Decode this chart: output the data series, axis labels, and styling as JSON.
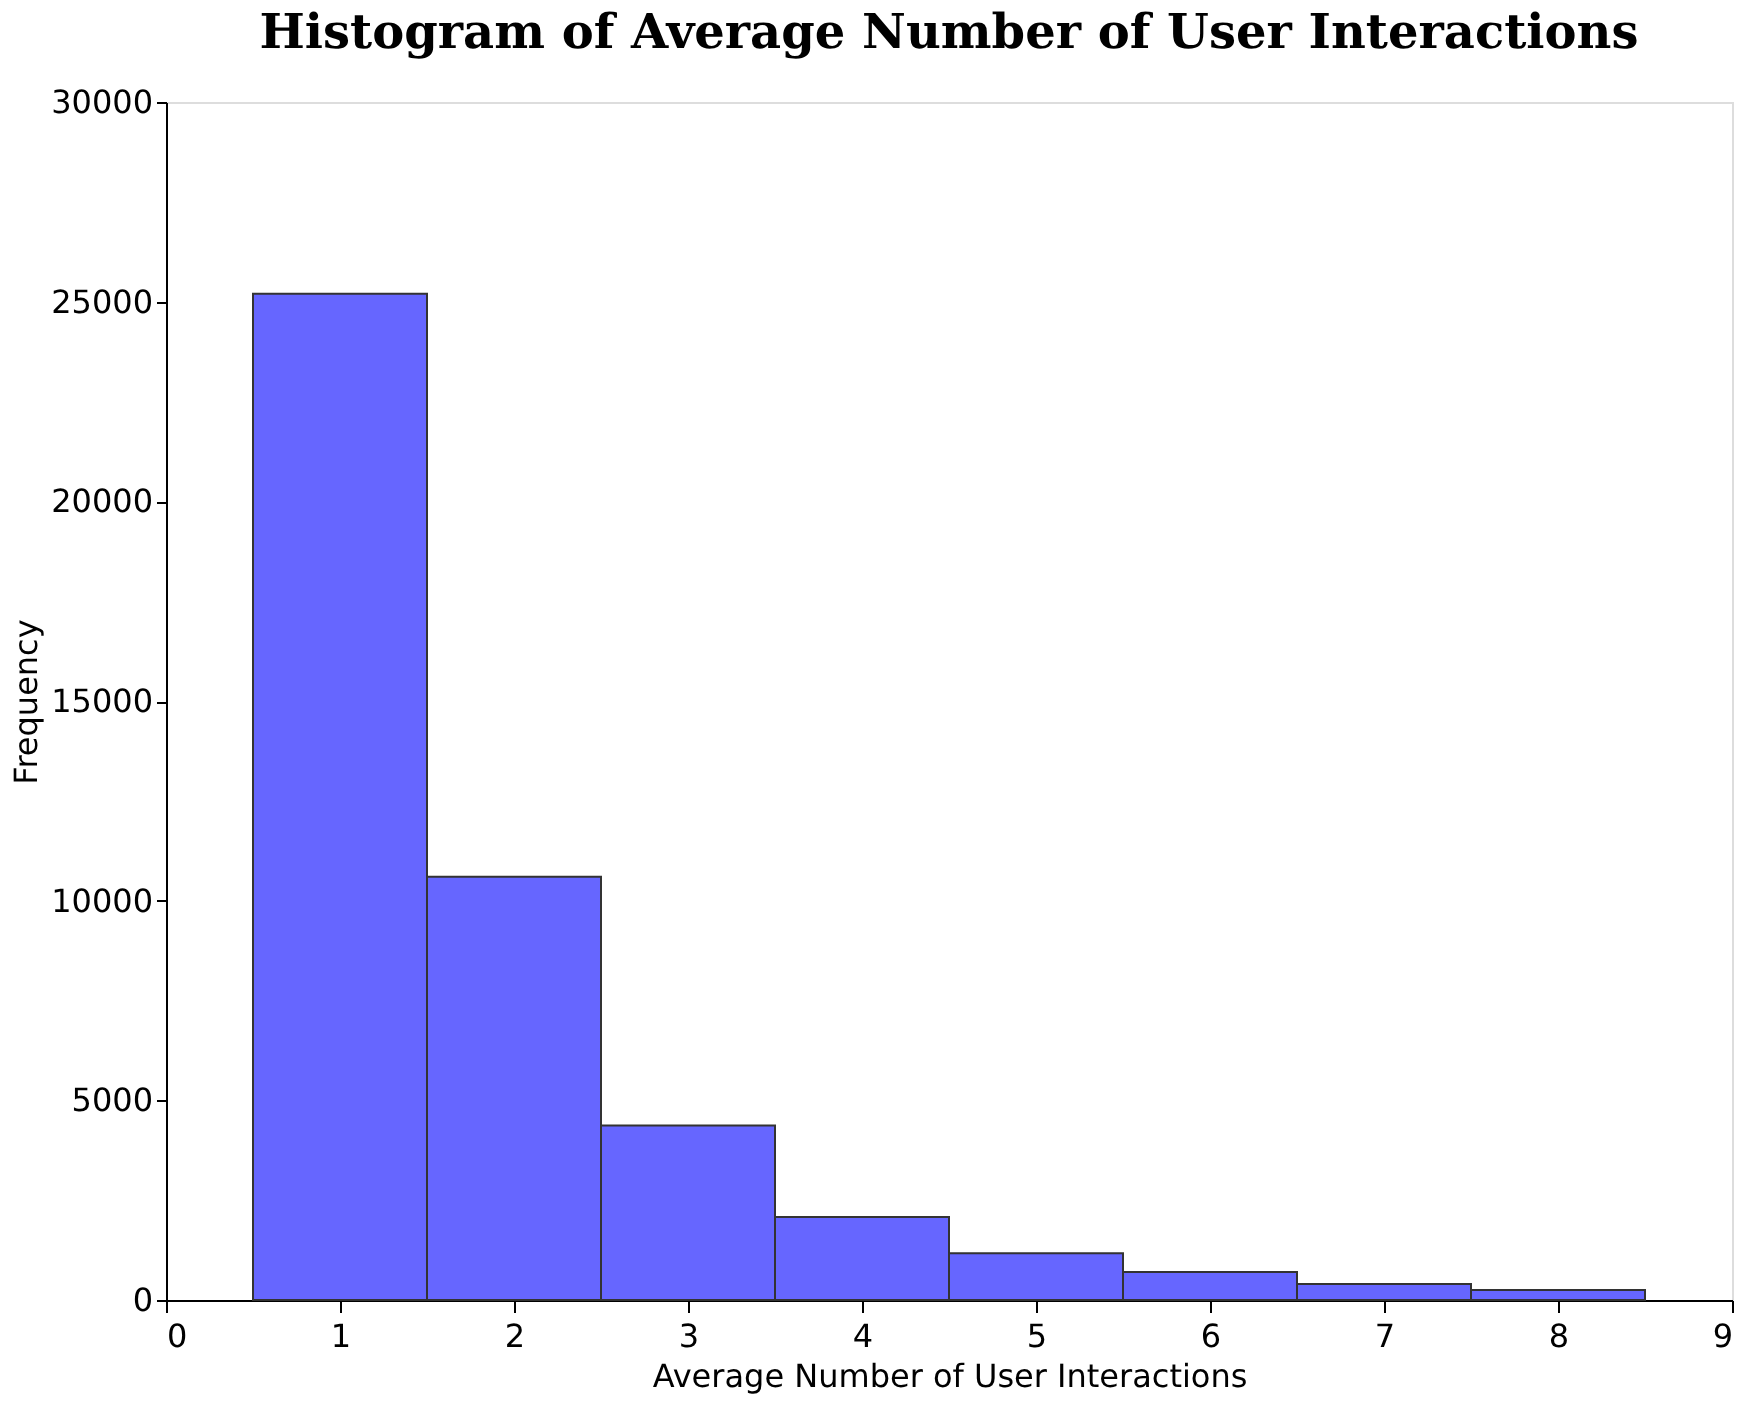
{
  "chart_data": {
    "type": "histogram",
    "title": "Histogram of Average Number of User Interactions",
    "xlabel": "Average Number of User Interactions",
    "ylabel": "Frequency",
    "bins": [
      0.5,
      1.5,
      2.5,
      3.5,
      4.5,
      5.5,
      6.5,
      7.5,
      8.5
    ],
    "values": [
      25200,
      10600,
      4370,
      2080,
      1170,
      700,
      400,
      250
    ],
    "color": "#6666ff",
    "xlim": [
      0,
      9
    ],
    "xticks": [
      0,
      1,
      2,
      3,
      4,
      5,
      6,
      7,
      8,
      9
    ],
    "ylim": [
      0,
      30000
    ],
    "yticks": [
      0,
      5000,
      10000,
      15000,
      20000,
      25000,
      30000
    ],
    "grid": false
  }
}
